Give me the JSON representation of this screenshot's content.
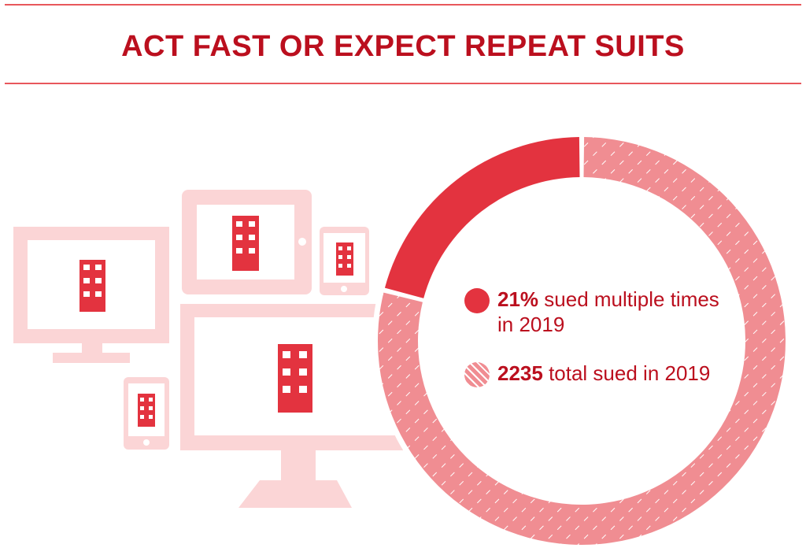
{
  "title": "ACT FAST OR EXPECT REPEAT SUITS",
  "colors": {
    "title": "#bb0f1e",
    "rule": "#e8575c",
    "multiple": "#e3333f",
    "total": "#f08d92",
    "device_light": "#fbd5d6",
    "building": "#e3333f"
  },
  "icons": [
    "desktop-monitor-icon",
    "tablet-icon",
    "phone-icon",
    "large-monitor-icon",
    "building-icon"
  ],
  "chart_data": {
    "type": "pie",
    "style": "donut",
    "title": "",
    "slices": [
      {
        "key": "multiple",
        "value": 21,
        "color": "#e3333f",
        "pattern": "solid"
      },
      {
        "key": "total",
        "value": 79,
        "color": "#f08d92",
        "pattern": "hatched"
      }
    ],
    "legend": [
      {
        "key": "multiple",
        "bold": "21%",
        "text": " sued multiple times in 2019"
      },
      {
        "key": "total",
        "bold": "2235",
        "text": " total sued in 2019"
      }
    ],
    "legend_position": "center"
  }
}
